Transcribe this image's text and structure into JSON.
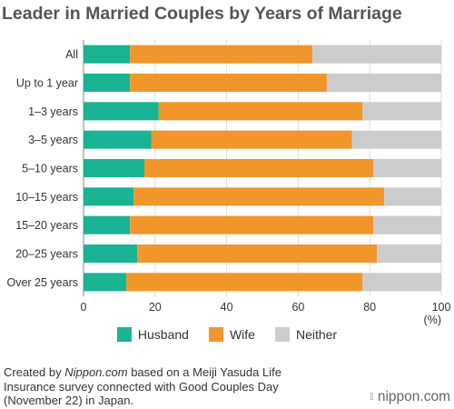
{
  "colors": {
    "husband": "#1ab394",
    "wife": "#f0962b",
    "neither": "#cccccc",
    "grid": "#dddddd",
    "axis": "#888888"
  },
  "footnote": {
    "prefix": "Created by ",
    "source_italic": "Nippon.com",
    "suffix": " based on a Meiji Yasuda Life Insurance survey connected with Good Couples Day (November 22) in Japan."
  },
  "logo": {
    "mark": "⁞⁞",
    "text": "nippon.com"
  },
  "chart_data": {
    "type": "bar",
    "orientation": "horizontal",
    "stacked": true,
    "title": "Leader in Married Couples by Years of Marriage",
    "categories": [
      "All",
      "Up to 1 year",
      "1–3 years",
      "3–5 years",
      "5–10 years",
      "10–15 years",
      "15–20 years",
      "20–25 years",
      "Over 25 years"
    ],
    "series": [
      {
        "name": "Husband",
        "values": [
          13,
          13,
          21,
          19,
          17,
          14,
          13,
          15,
          12
        ]
      },
      {
        "name": "Wife",
        "values": [
          51,
          55,
          57,
          56,
          64,
          70,
          68,
          67,
          66
        ]
      },
      {
        "name": "Neither",
        "values": [
          36,
          32,
          22,
          25,
          19,
          16,
          19,
          18,
          22
        ]
      }
    ],
    "xlim": [
      0,
      100
    ],
    "xticks": [
      0,
      20,
      40,
      60,
      80,
      100
    ],
    "x_unit": "(%)",
    "grid": true,
    "legend": "bottom"
  }
}
